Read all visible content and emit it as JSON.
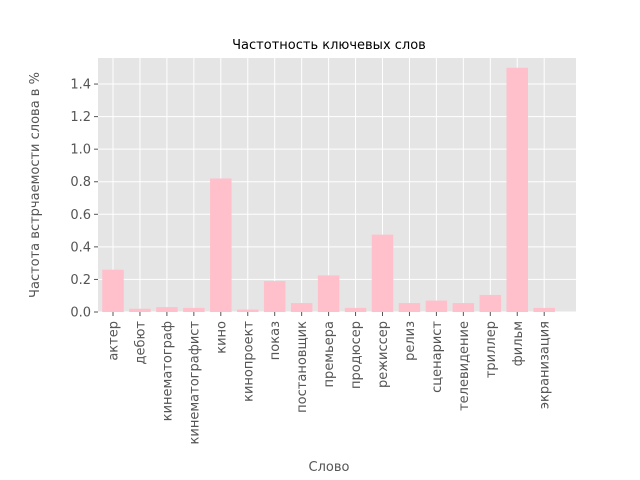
{
  "chart_data": {
    "type": "bar",
    "title": "Частотность ключевых слов",
    "xlabel": "Слово",
    "ylabel": "Частота встрчаемости слова в %",
    "categories": [
      "актер",
      "дебют",
      "кинематограф",
      "кинематографист",
      "кино",
      "кинопроект",
      "показ",
      "постановщик",
      "премьера",
      "продюсер",
      "режиссер",
      "релиз",
      "сценарист",
      "телевидение",
      "триллер",
      "фильм",
      "экранизация"
    ],
    "values": [
      0.26,
      0.02,
      0.03,
      0.025,
      0.82,
      0.015,
      0.19,
      0.055,
      0.225,
      0.025,
      0.475,
      0.055,
      0.07,
      0.055,
      0.105,
      1.5,
      0.025
    ],
    "ylim": [
      0,
      1.56
    ],
    "yticks": [
      0.0,
      0.2,
      0.4,
      0.6,
      0.8,
      1.0,
      1.2,
      1.4
    ],
    "ytick_labels": [
      "0.0",
      "0.2",
      "0.4",
      "0.6",
      "0.8",
      "1.0",
      "1.2",
      "1.4"
    ],
    "grid": true,
    "colors": {
      "bar": "#ffc0cb",
      "plot_bg": "#e5e5e5",
      "grid": "#ffffff"
    }
  }
}
